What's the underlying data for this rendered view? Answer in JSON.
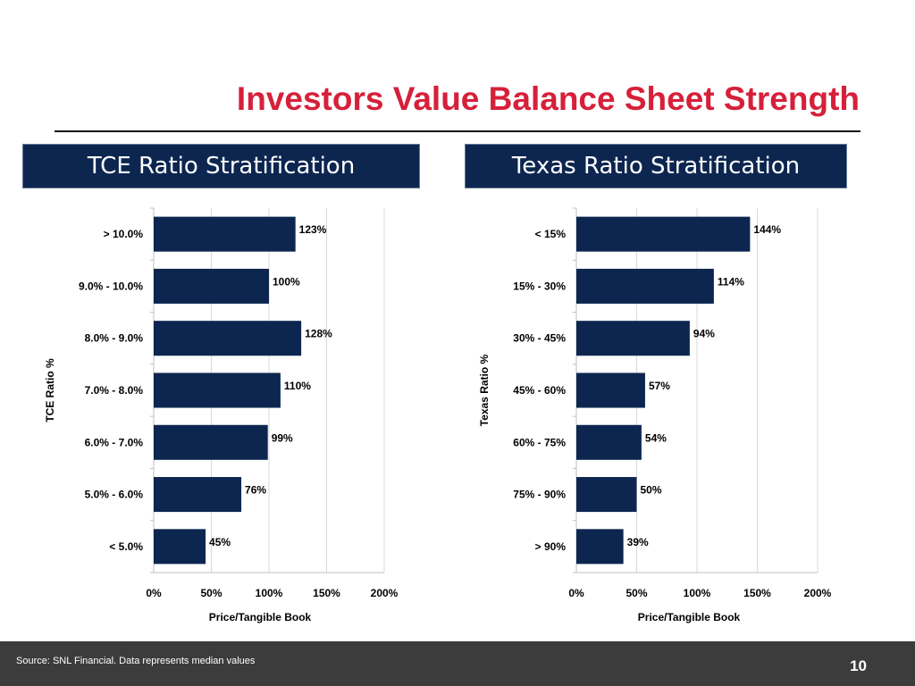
{
  "slide": {
    "title": "Investors Value Balance Sheet Strength",
    "page_number": "10",
    "source_note": "Source: SNL Financial. Data represents median values"
  },
  "colors": {
    "title_red": "#d6203a",
    "navy": "#0d2650",
    "footer_gray": "#3c3c3c"
  },
  "chart_data": [
    {
      "type": "bar",
      "orientation": "horizontal",
      "header": "TCE Ratio Stratification",
      "categories": [
        "> 10.0%",
        "9.0% - 10.0%",
        "8.0% - 9.0%",
        "7.0% - 8.0%",
        "6.0% - 7.0%",
        "5.0% - 6.0%",
        "< 5.0%"
      ],
      "values": [
        123,
        100,
        128,
        110,
        99,
        76,
        45
      ],
      "value_labels": [
        "123%",
        "100%",
        "128%",
        "110%",
        "99%",
        "76%",
        "45%"
      ],
      "xlabel": "Price/Tangible Book",
      "ylabel": "TCE Ratio %",
      "xlim": [
        0,
        200
      ],
      "x_ticks": [
        0,
        50,
        100,
        150,
        200
      ],
      "x_tick_labels": [
        "0%",
        "50%",
        "100%",
        "150%",
        "200%"
      ],
      "grid": true
    },
    {
      "type": "bar",
      "orientation": "horizontal",
      "header": "Texas Ratio Stratification",
      "categories": [
        "< 15%",
        "15% - 30%",
        "30% - 45%",
        "45% - 60%",
        "60% - 75%",
        "75% - 90%",
        "> 90%"
      ],
      "values": [
        144,
        114,
        94,
        57,
        54,
        50,
        39
      ],
      "value_labels": [
        "144%",
        "114%",
        "94%",
        "57%",
        "54%",
        "50%",
        "39%"
      ],
      "xlabel": "Price/Tangible Book",
      "ylabel": "Texas Ratio %",
      "xlim": [
        0,
        200
      ],
      "x_ticks": [
        0,
        50,
        100,
        150,
        200
      ],
      "x_tick_labels": [
        "0%",
        "50%",
        "100%",
        "150%",
        "200%"
      ],
      "grid": true
    }
  ]
}
